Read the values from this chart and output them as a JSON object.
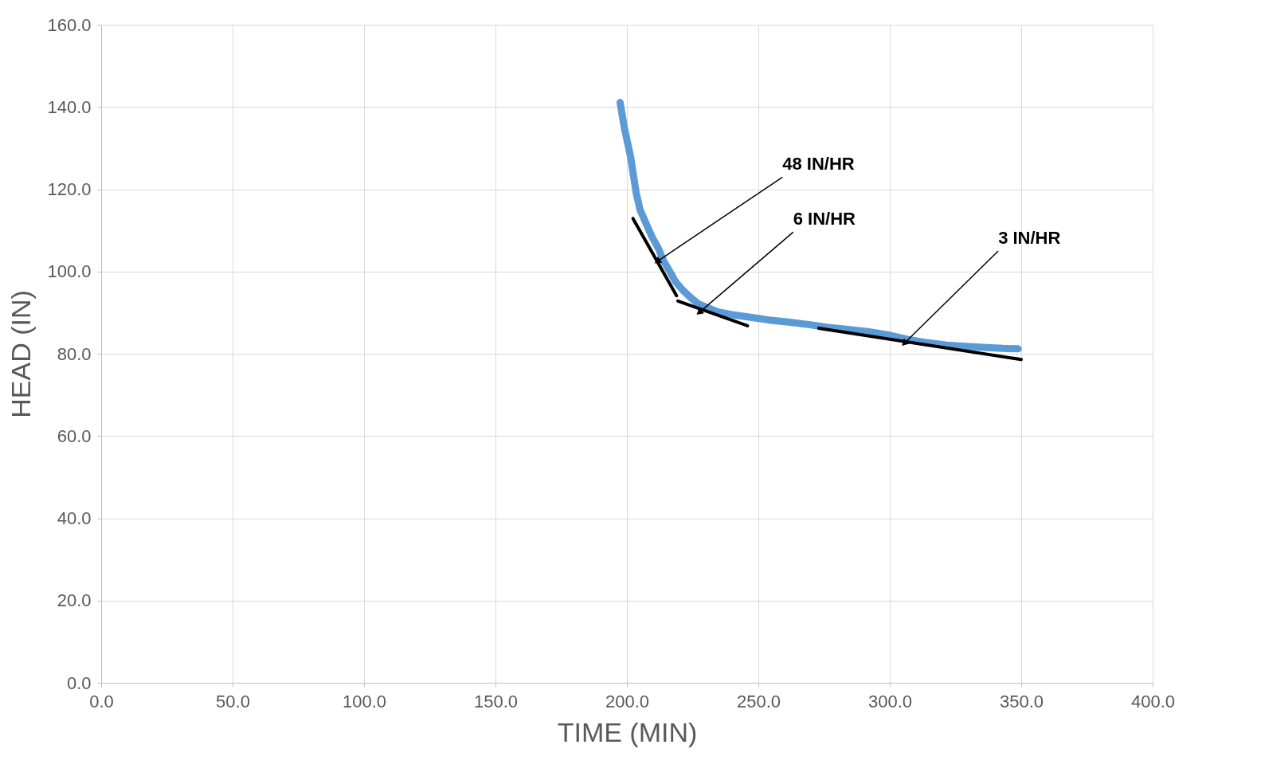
{
  "chart_data": {
    "type": "line",
    "xlabel": "TIME (MIN)",
    "ylabel": "HEAD (IN)",
    "xlim": [
      0,
      400
    ],
    "ylim": [
      0,
      160
    ],
    "xticks": [
      {
        "value": 0,
        "label": "0.0"
      },
      {
        "value": 50,
        "label": "50.0"
      },
      {
        "value": 100,
        "label": "100.0"
      },
      {
        "value": 150,
        "label": "150.0"
      },
      {
        "value": 200,
        "label": "200.0"
      },
      {
        "value": 250,
        "label": "250.0"
      },
      {
        "value": 300,
        "label": "300.0"
      },
      {
        "value": 350,
        "label": "350.0"
      },
      {
        "value": 400,
        "label": "400.0"
      }
    ],
    "yticks": [
      {
        "value": 0,
        "label": "0.0"
      },
      {
        "value": 20,
        "label": "20.0"
      },
      {
        "value": 40,
        "label": "40.0"
      },
      {
        "value": 60,
        "label": "60.0"
      },
      {
        "value": 80,
        "label": "80.0"
      },
      {
        "value": 100,
        "label": "100.0"
      },
      {
        "value": 120,
        "label": "120.0"
      },
      {
        "value": 140,
        "label": "140.0"
      },
      {
        "value": 160,
        "label": "160.0"
      }
    ],
    "grid": true,
    "line_style": "solid",
    "marker": "none",
    "series": [
      {
        "color": "#5b9bd5",
        "x": [
          197.4,
          199,
          201.4,
          203.5,
          205,
          207.4,
          209.5,
          211.9,
          214,
          216.4,
          218.5,
          220.9,
          224,
          227,
          231,
          234.5,
          240,
          246.5,
          254,
          261.5,
          269,
          276.6,
          284,
          291.6,
          299,
          306.7,
          314,
          321.7,
          329,
          336.8,
          343,
          348.8
        ],
        "values": [
          141.1,
          135,
          127.9,
          119.2,
          115,
          111.5,
          108.5,
          105.7,
          102.5,
          99.9,
          97.5,
          95.7,
          93.8,
          92.2,
          91.1,
          90.2,
          89.5,
          88.9,
          88.2,
          87.7,
          87.1,
          86.4,
          85.9,
          85.4,
          84.6,
          83.5,
          82.7,
          82.1,
          81.8,
          81.5,
          81.3,
          81.2
        ]
      },
      {
        "color": "#000000",
        "x": [
          202.3,
          218.9
        ],
        "values": [
          112.9,
          94.1
        ]
      },
      {
        "color": "#000000",
        "x": [
          219.4,
          245.9
        ],
        "values": [
          92.8,
          86.8
        ]
      },
      {
        "color": "#000000",
        "x": [
          273,
          350
        ],
        "values": [
          86.2,
          78.6
        ]
      }
    ],
    "annotations": [
      {
        "text": "48 IN/HR",
        "x": 211.9,
        "y": 102.6
      },
      {
        "text": "6 IN/HR",
        "x": 227.8,
        "y": 90.2
      },
      {
        "text": "3 IN/HR",
        "x": 305.8,
        "y": 82.7
      }
    ]
  }
}
